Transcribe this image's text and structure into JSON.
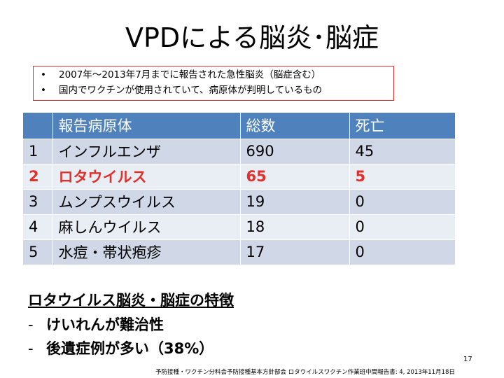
{
  "title": "VPDによる脳炎･脳症",
  "notes": [
    "2007年〜2013年7月までに報告された急性脳炎（脳症含む）",
    "国内でワクチンが使用されていて、病原体が判明しているもの"
  ],
  "bullet": "•",
  "table": {
    "headers": [
      "",
      "報告病原体",
      "総数",
      "死亡"
    ],
    "rows": [
      {
        "rank": "1",
        "pathogen": "インフルエンザ",
        "total": "690",
        "deaths": "45"
      },
      {
        "rank": "2",
        "pathogen": "ロタウイルス",
        "total": "65",
        "deaths": "5"
      },
      {
        "rank": "3",
        "pathogen": "ムンプスウイルス",
        "total": "19",
        "deaths": "0"
      },
      {
        "rank": "4",
        "pathogen": "麻しんウイルス",
        "total": "18",
        "deaths": "0"
      },
      {
        "rank": "5",
        "pathogen": "水痘・帯状疱疹",
        "total": "17",
        "deaths": "0"
      }
    ],
    "highlight_color": "#e0302a",
    "header_color": "#4f81bd"
  },
  "features": {
    "heading": "ロタウイルス脳炎・脳症の特徴",
    "dash": "-",
    "items": [
      "けいれんが難治性",
      "後遺症例が多い（38%）"
    ]
  },
  "page_number": "17",
  "source": "予防接種・ワクチン分科会予防接種基本方針部会 ロタウイルスワクチン作業班中間報告書: 4, 2013年11月18日"
}
